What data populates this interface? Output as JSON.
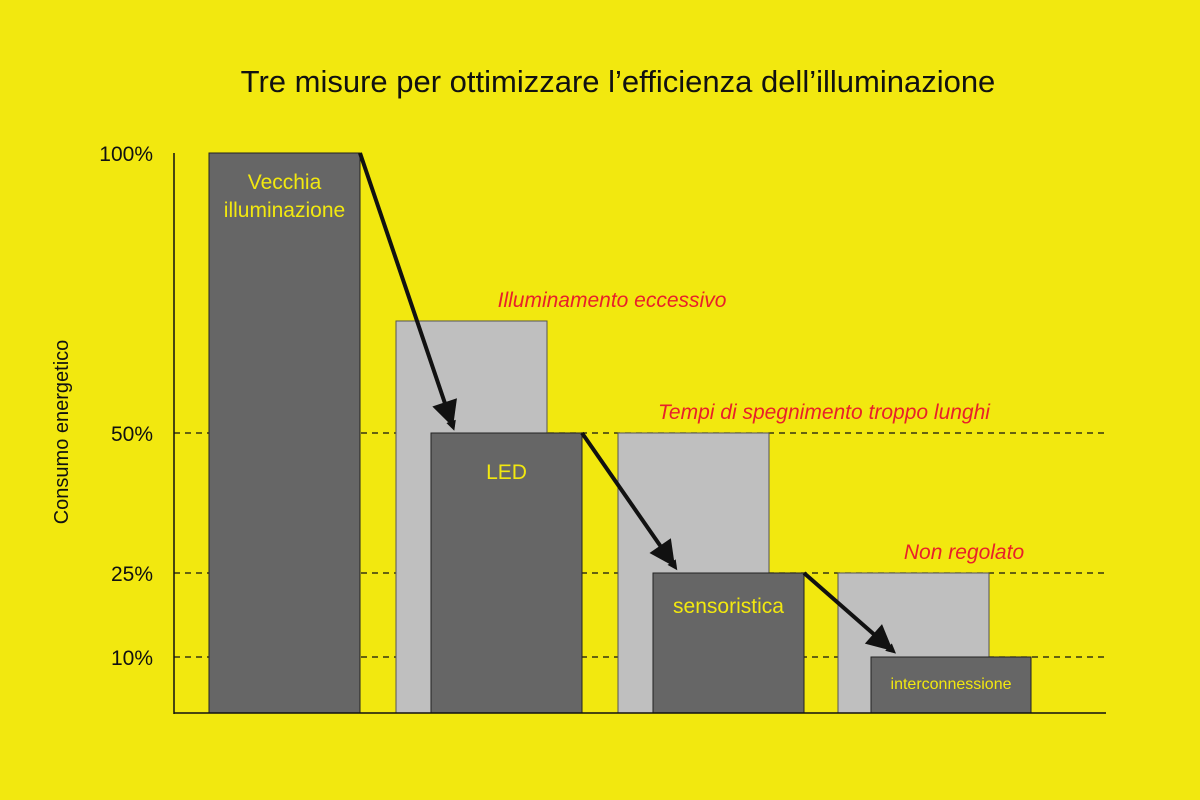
{
  "colors": {
    "background": "#f2e80f",
    "dark_bar": "#666666",
    "light_bar": "#bfbfbf",
    "annotation": "#e8202a",
    "axis": "#111111"
  },
  "chart_data": {
    "type": "bar",
    "title": "Tre misure per ottimizzare l’efficienza dell’illuminazione",
    "ylabel": "Consumo energetico",
    "ylim": [
      0,
      100
    ],
    "y_scale": "nonlinear",
    "yticks": [
      {
        "value": 100,
        "label": "100%"
      },
      {
        "value": 50,
        "label": "50%"
      },
      {
        "value": 25,
        "label": "25%"
      },
      {
        "value": 10,
        "label": "10%"
      }
    ],
    "grid": "dashed lines at 50%, 25%, 10%",
    "categories": [
      "Vecchia illuminazione",
      "LED",
      "sensoristica",
      "interconnessione"
    ],
    "series": [
      {
        "values": [
          100,
          50,
          25,
          10
        ],
        "labels": [
          [
            "Vecchia",
            "illuminazione"
          ],
          [
            "LED"
          ],
          [
            "sensoristica"
          ],
          [
            "interconnessione"
          ]
        ]
      },
      {
        "values": [
          null,
          70,
          50,
          25
        ],
        "annotations": [
          "",
          "Illuminamento eccessivo",
          "Tempi di spegnimento troppo lunghi",
          "Non regolato"
        ]
      }
    ],
    "arrows": "from top of each dark bar to top of the next dark bar"
  }
}
